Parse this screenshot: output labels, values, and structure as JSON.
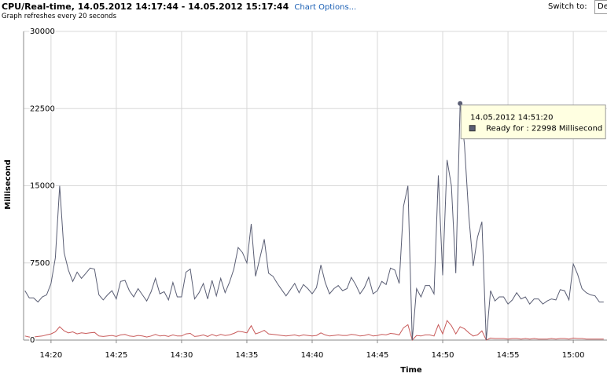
{
  "header": {
    "title": "CPU/Real-time, 14.05.2012 14:17:44 - 14.05.2012 15:17:44",
    "link": "Chart Options...",
    "subtitle": "Graph refreshes every 20 seconds",
    "switch_label": "Switch to:",
    "switch_value": "De"
  },
  "chart_data": {
    "type": "line",
    "y_label": "Millisecond",
    "x_label": "Time",
    "xlim": [
      "14:17:54",
      "15:02:35"
    ],
    "xticks": [
      "14:20",
      "14:25",
      "14:30",
      "14:35",
      "14:40",
      "14:45",
      "14:50",
      "14:55",
      "15:00"
    ],
    "ylim": [
      0,
      30000
    ],
    "yticks": [
      0,
      7500,
      15000,
      22500,
      30000
    ],
    "grid": true,
    "x": [
      "14:18:00",
      "14:18:20",
      "14:18:40",
      "14:19:00",
      "14:19:20",
      "14:19:40",
      "14:20:00",
      "14:20:20",
      "14:20:40",
      "14:21:00",
      "14:21:20",
      "14:21:40",
      "14:22:00",
      "14:22:20",
      "14:22:40",
      "14:23:00",
      "14:23:20",
      "14:23:40",
      "14:24:00",
      "14:24:20",
      "14:24:40",
      "14:25:00",
      "14:25:20",
      "14:25:40",
      "14:26:00",
      "14:26:20",
      "14:26:40",
      "14:27:00",
      "14:27:20",
      "14:27:40",
      "14:28:00",
      "14:28:20",
      "14:28:40",
      "14:29:00",
      "14:29:20",
      "14:29:40",
      "14:30:00",
      "14:30:20",
      "14:30:40",
      "14:31:00",
      "14:31:20",
      "14:31:40",
      "14:32:00",
      "14:32:20",
      "14:32:40",
      "14:33:00",
      "14:33:20",
      "14:33:40",
      "14:34:00",
      "14:34:20",
      "14:34:40",
      "14:35:00",
      "14:35:20",
      "14:35:40",
      "14:36:00",
      "14:36:20",
      "14:36:40",
      "14:37:00",
      "14:37:20",
      "14:37:40",
      "14:38:00",
      "14:38:20",
      "14:38:40",
      "14:39:00",
      "14:39:20",
      "14:39:40",
      "14:40:00",
      "14:40:20",
      "14:40:40",
      "14:41:00",
      "14:41:20",
      "14:41:40",
      "14:42:00",
      "14:42:20",
      "14:42:40",
      "14:43:00",
      "14:43:20",
      "14:43:40",
      "14:44:00",
      "14:44:20",
      "14:44:40",
      "14:45:00",
      "14:45:20",
      "14:45:40",
      "14:46:00",
      "14:46:20",
      "14:46:40",
      "14:47:00",
      "14:47:20",
      "14:47:40",
      "14:48:00",
      "14:48:20",
      "14:48:40",
      "14:49:00",
      "14:49:20",
      "14:49:40",
      "14:50:00",
      "14:50:20",
      "14:50:40",
      "14:51:00",
      "14:51:20",
      "14:51:40",
      "14:52:00",
      "14:52:20",
      "14:52:40",
      "14:53:00",
      "14:53:20",
      "14:53:40",
      "14:54:00",
      "14:54:20",
      "14:54:40",
      "14:55:00",
      "14:55:20",
      "14:55:40",
      "14:56:00",
      "14:56:20",
      "14:56:40",
      "14:57:00",
      "14:57:20",
      "14:57:40",
      "14:58:00",
      "14:58:20",
      "14:58:40",
      "14:59:00",
      "14:59:20",
      "14:59:40",
      "15:00:00",
      "15:00:20",
      "15:00:40",
      "15:01:00",
      "15:01:20",
      "15:01:40",
      "15:02:00",
      "15:02:20"
    ],
    "series": [
      {
        "color": "#5a5e74",
        "values": [
          4800,
          4100,
          4100,
          3700,
          4200,
          4400,
          5500,
          8000,
          15000,
          8500,
          6800,
          5700,
          6600,
          6000,
          6500,
          7000,
          6900,
          4400,
          3900,
          4400,
          4800,
          4000,
          5700,
          5800,
          4800,
          4200,
          5000,
          4400,
          3800,
          4700,
          6000,
          4500,
          4700,
          3900,
          5600,
          4200,
          4200,
          6600,
          6900,
          4000,
          4600,
          5500,
          4000,
          5800,
          4300,
          6000,
          4600,
          5600,
          6900,
          9000,
          8500,
          7500,
          11300,
          6200,
          8000,
          9800,
          6500,
          6200,
          5500,
          4900,
          4300,
          4900,
          5500,
          4600,
          5400,
          5000,
          4500,
          5100,
          7300,
          5600,
          4500,
          5000,
          5300,
          4800,
          5000,
          6100,
          5400,
          4500,
          5100,
          6100,
          4500,
          4800,
          5700,
          5400,
          7000,
          6800,
          5500,
          13000,
          15000,
          0,
          5000,
          4200,
          5300,
          5300,
          4500,
          16000,
          6300,
          17500,
          15000,
          6500,
          22998,
          19000,
          12000,
          7200,
          10000,
          11500,
          0,
          4800,
          3800,
          4200,
          4200,
          3500,
          3900,
          4600,
          4000,
          4200,
          3500,
          4000,
          4000,
          3500,
          3800,
          4000,
          3900,
          4900,
          4800,
          3900,
          7400,
          6400,
          5000,
          4600,
          4400,
          4300,
          3700,
          3700
        ]
      },
      {
        "color": "#c85a5a",
        "values": [
          400,
          300,
          300,
          350,
          400,
          500,
          600,
          800,
          1300,
          900,
          700,
          800,
          600,
          700,
          650,
          700,
          750,
          400,
          350,
          400,
          450,
          350,
          500,
          550,
          400,
          350,
          450,
          400,
          300,
          400,
          550,
          400,
          450,
          350,
          500,
          400,
          400,
          600,
          650,
          350,
          400,
          500,
          350,
          550,
          400,
          550,
          450,
          500,
          650,
          850,
          800,
          700,
          1400,
          600,
          750,
          950,
          600,
          550,
          500,
          450,
          400,
          450,
          500,
          400,
          500,
          450,
          400,
          450,
          700,
          500,
          400,
          450,
          500,
          450,
          450,
          550,
          500,
          400,
          450,
          550,
          400,
          450,
          550,
          500,
          650,
          600,
          500,
          1200,
          1500,
          0,
          450,
          400,
          500,
          500,
          400,
          1500,
          600,
          1900,
          1400,
          600,
          1300,
          1100,
          700,
          400,
          500,
          900,
          0,
          200,
          150,
          150,
          150,
          100,
          150,
          150,
          100,
          150,
          100,
          150,
          100,
          100,
          100,
          150,
          100,
          150,
          150,
          100,
          200,
          150,
          150,
          100,
          100,
          100,
          100,
          100
        ]
      }
    ],
    "tooltip": {
      "time": "14.05.2012 14:51:20",
      "text": "Ready for : 22998 Millisecond"
    }
  }
}
